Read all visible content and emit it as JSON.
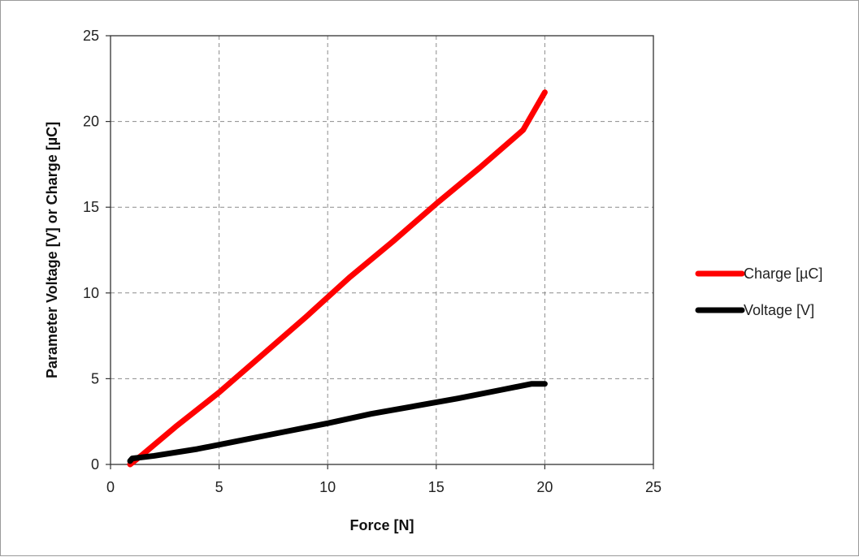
{
  "chart_data": {
    "type": "line",
    "title": "",
    "xlabel": "Force [N]",
    "ylabel": "Parameter Voltage [V] or Charge [µC]",
    "xlim": [
      0,
      25
    ],
    "ylim": [
      0,
      25
    ],
    "x_ticks": [
      "0",
      "5",
      "10",
      "15",
      "20",
      "25"
    ],
    "y_ticks": [
      "0",
      "5",
      "10",
      "15",
      "20",
      "25"
    ],
    "grid": true,
    "legend_position": "right",
    "series": [
      {
        "name": "Charge [µC]",
        "color": "#ff0000",
        "x": [
          0.9,
          1.5,
          3,
          5,
          7,
          9,
          11,
          13,
          15,
          17,
          19,
          20
        ],
        "y": [
          0.0,
          0.6,
          2.2,
          4.2,
          6.4,
          8.6,
          10.9,
          13.0,
          15.2,
          17.3,
          19.5,
          21.7
        ]
      },
      {
        "name": "Voltage [V]",
        "color": "#000000",
        "x": [
          0.9,
          1.0,
          2,
          4,
          6,
          8,
          10,
          12,
          14,
          16,
          18,
          19.4,
          20
        ],
        "y": [
          0.2,
          0.35,
          0.5,
          0.9,
          1.4,
          1.9,
          2.4,
          2.95,
          3.4,
          3.85,
          4.35,
          4.7,
          4.7
        ]
      }
    ]
  }
}
